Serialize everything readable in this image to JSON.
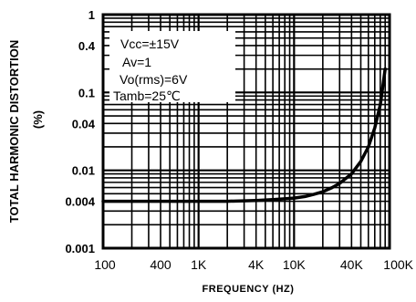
{
  "chart_data": {
    "type": "line",
    "title": "",
    "ylabel": "TOTAL HARMONIC DISTORTION",
    "ylabel_unit": "(%)",
    "xlabel": "FREQUENCY (HZ)",
    "x_scale": "log",
    "y_scale": "log",
    "xlim": [
      100,
      100000
    ],
    "ylim": [
      0.001,
      1
    ],
    "grid": true,
    "x_ticks": [
      {
        "value": 100,
        "label": "100"
      },
      {
        "value": 400,
        "label": "400"
      },
      {
        "value": 1000,
        "label": "1K"
      },
      {
        "value": 4000,
        "label": "4K"
      },
      {
        "value": 10000,
        "label": "10K"
      },
      {
        "value": 40000,
        "label": "40K"
      },
      {
        "value": 100000,
        "label": "100K"
      }
    ],
    "y_ticks": [
      {
        "value": 0.001,
        "label": "0.001"
      },
      {
        "value": 0.004,
        "label": "0.004"
      },
      {
        "value": 0.01,
        "label": "0.01"
      },
      {
        "value": 0.04,
        "label": "0.04"
      },
      {
        "value": 0.1,
        "label": "0.1"
      },
      {
        "value": 0.4,
        "label": "0.4"
      },
      {
        "value": 1,
        "label": "1"
      }
    ],
    "annotations": [
      "Vcc=±15V",
      "Av=1",
      "Vo(rms)=6V",
      "Tamb=25℃"
    ],
    "series": [
      {
        "x": [
          100,
          200,
          500,
          1000,
          2000,
          4000,
          6000,
          8000,
          10000,
          13000,
          16000,
          20000,
          25000,
          30000,
          40000,
          50000,
          60000,
          70000,
          80000,
          90000
        ],
        "y": [
          0.004,
          0.004,
          0.004,
          0.004,
          0.004,
          0.0041,
          0.0042,
          0.0043,
          0.0044,
          0.0046,
          0.0049,
          0.0053,
          0.006,
          0.0068,
          0.009,
          0.013,
          0.02,
          0.035,
          0.07,
          0.2
        ]
      }
    ]
  }
}
